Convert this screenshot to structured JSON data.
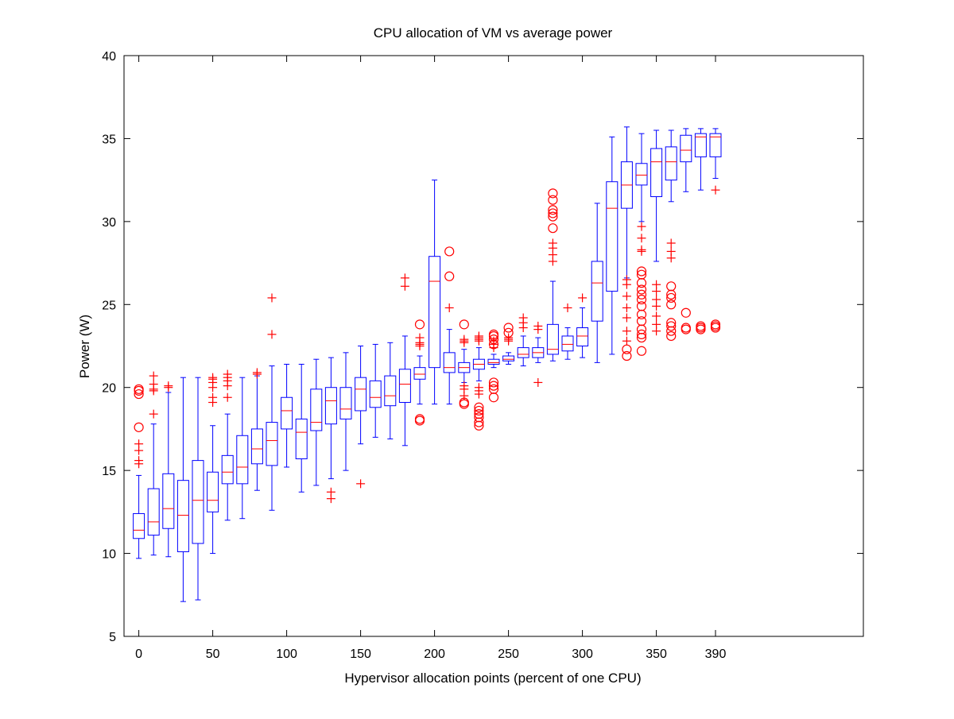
{
  "chart_data": {
    "type": "box",
    "title": "CPU allocation of VM vs average power",
    "xlabel": "Hypervisor allocation points (percent of one CPU)",
    "ylabel": "Power (W)",
    "xlim": [
      -10,
      490
    ],
    "ylim": [
      5,
      40
    ],
    "xticks": [
      0,
      50,
      100,
      150,
      200,
      250,
      300,
      350,
      390
    ],
    "yticks": [
      5,
      10,
      15,
      20,
      25,
      30,
      35,
      40
    ],
    "grid": false,
    "colors": {
      "box": "#0000ff",
      "median": "#ff0000",
      "outlier": "#ff0000",
      "axes": "#000000"
    },
    "boxes": [
      {
        "x": 0,
        "whisker_low": 9.7,
        "q1": 10.9,
        "median": 11.4,
        "q3": 12.4,
        "whisker_high": 14.7,
        "outliers_plus": [
          15.4,
          15.6,
          16.2,
          16.6
        ],
        "outliers_circle": [
          17.6,
          19.6,
          19.8,
          19.9
        ]
      },
      {
        "x": 10,
        "whisker_low": 9.9,
        "q1": 11.1,
        "median": 11.9,
        "q3": 13.9,
        "whisker_high": 17.8,
        "outliers_plus": [
          18.4,
          19.8,
          19.9,
          20.2,
          20.7
        ],
        "outliers_circle": []
      },
      {
        "x": 20,
        "whisker_low": 9.8,
        "q1": 11.5,
        "median": 12.7,
        "q3": 14.8,
        "whisker_high": 19.7,
        "outliers_plus": [
          20.0,
          20.1
        ],
        "outliers_circle": []
      },
      {
        "x": 30,
        "whisker_low": 7.1,
        "q1": 10.1,
        "median": 12.3,
        "q3": 14.4,
        "whisker_high": 20.6,
        "outliers_plus": [],
        "outliers_circle": []
      },
      {
        "x": 40,
        "whisker_low": 7.2,
        "q1": 10.6,
        "median": 13.2,
        "q3": 15.6,
        "whisker_high": 20.6,
        "outliers_plus": [],
        "outliers_circle": []
      },
      {
        "x": 50,
        "whisker_low": 10.0,
        "q1": 12.5,
        "median": 13.2,
        "q3": 14.9,
        "whisker_high": 17.7,
        "outliers_plus": [
          19.1,
          19.4,
          20.0,
          20.3,
          20.5,
          20.6
        ],
        "outliers_circle": []
      },
      {
        "x": 60,
        "whisker_low": 12.0,
        "q1": 14.2,
        "median": 14.9,
        "q3": 15.9,
        "whisker_high": 18.4,
        "outliers_plus": [
          19.4,
          20.1,
          20.4,
          20.6,
          20.8
        ],
        "outliers_circle": []
      },
      {
        "x": 70,
        "whisker_low": 12.1,
        "q1": 14.2,
        "median": 15.2,
        "q3": 17.1,
        "whisker_high": 20.6,
        "outliers_plus": [],
        "outliers_circle": []
      },
      {
        "x": 80,
        "whisker_low": 13.8,
        "q1": 15.4,
        "median": 16.3,
        "q3": 17.5,
        "whisker_high": 20.7,
        "outliers_plus": [
          20.8,
          20.9
        ],
        "outliers_circle": []
      },
      {
        "x": 90,
        "whisker_low": 12.6,
        "q1": 15.3,
        "median": 16.8,
        "q3": 17.9,
        "whisker_high": 21.3,
        "outliers_plus": [
          23.2,
          25.4
        ],
        "outliers_circle": []
      },
      {
        "x": 100,
        "whisker_low": 15.2,
        "q1": 17.5,
        "median": 18.6,
        "q3": 19.4,
        "whisker_high": 21.4,
        "outliers_plus": [],
        "outliers_circle": []
      },
      {
        "x": 110,
        "whisker_low": 13.7,
        "q1": 15.7,
        "median": 17.3,
        "q3": 18.1,
        "whisker_high": 21.4,
        "outliers_plus": [],
        "outliers_circle": []
      },
      {
        "x": 120,
        "whisker_low": 14.1,
        "q1": 17.4,
        "median": 17.9,
        "q3": 19.9,
        "whisker_high": 21.7,
        "outliers_plus": [],
        "outliers_circle": []
      },
      {
        "x": 130,
        "whisker_low": 14.5,
        "q1": 17.8,
        "median": 19.2,
        "q3": 20.0,
        "whisker_high": 21.8,
        "outliers_plus": [
          13.3,
          13.7
        ],
        "outliers_circle": []
      },
      {
        "x": 140,
        "whisker_low": 15.0,
        "q1": 18.1,
        "median": 18.7,
        "q3": 20.0,
        "whisker_high": 22.1,
        "outliers_plus": [],
        "outliers_circle": []
      },
      {
        "x": 150,
        "whisker_low": 16.6,
        "q1": 18.6,
        "median": 19.9,
        "q3": 20.6,
        "whisker_high": 22.5,
        "outliers_plus": [
          14.2
        ],
        "outliers_circle": []
      },
      {
        "x": 160,
        "whisker_low": 17.0,
        "q1": 18.8,
        "median": 19.4,
        "q3": 20.4,
        "whisker_high": 22.6,
        "outliers_plus": [],
        "outliers_circle": []
      },
      {
        "x": 170,
        "whisker_low": 16.9,
        "q1": 18.9,
        "median": 19.5,
        "q3": 20.7,
        "whisker_high": 22.7,
        "outliers_plus": [],
        "outliers_circle": []
      },
      {
        "x": 180,
        "whisker_low": 16.5,
        "q1": 19.1,
        "median": 20.2,
        "q3": 21.1,
        "whisker_high": 23.1,
        "outliers_plus": [
          26.1,
          26.6
        ],
        "outliers_circle": []
      },
      {
        "x": 190,
        "whisker_low": 19.0,
        "q1": 20.5,
        "median": 20.8,
        "q3": 21.2,
        "whisker_high": 21.9,
        "outliers_plus": [
          22.5,
          22.6,
          22.7,
          23.0
        ],
        "outliers_circle": [
          18.0,
          18.1,
          23.8
        ]
      },
      {
        "x": 200,
        "whisker_low": 19.0,
        "q1": 21.2,
        "median": 26.4,
        "q3": 27.9,
        "whisker_high": 32.5,
        "outliers_plus": [],
        "outliers_circle": []
      },
      {
        "x": 210,
        "whisker_low": 19.0,
        "q1": 20.9,
        "median": 21.2,
        "q3": 22.1,
        "whisker_high": 23.5,
        "outliers_plus": [
          24.8
        ],
        "outliers_circle": [
          26.7,
          28.2
        ]
      },
      {
        "x": 220,
        "whisker_low": 20.3,
        "q1": 20.9,
        "median": 21.2,
        "q3": 21.5,
        "whisker_high": 22.3,
        "outliers_plus": [
          19.5,
          19.9,
          20.1,
          22.7,
          22.8,
          22.9
        ],
        "outliers_circle": [
          19.0,
          19.1,
          23.8
        ]
      },
      {
        "x": 230,
        "whisker_low": 20.4,
        "q1": 21.1,
        "median": 21.4,
        "q3": 21.7,
        "whisker_high": 22.4,
        "outliers_plus": [
          19.6,
          19.8,
          20.0,
          22.8,
          22.9,
          23.0,
          23.1
        ],
        "outliers_circle": [
          17.7,
          17.9,
          18.2,
          18.4,
          18.6,
          18.8
        ]
      },
      {
        "x": 240,
        "whisker_low": 21.2,
        "q1": 21.4,
        "median": 21.5,
        "q3": 21.7,
        "whisker_high": 22.0,
        "outliers_plus": [
          22.4,
          22.6,
          22.8
        ],
        "outliers_circle": [
          19.4,
          19.9,
          20.1,
          20.3,
          22.6,
          22.9,
          23.1,
          23.2
        ]
      },
      {
        "x": 250,
        "whisker_low": 21.4,
        "q1": 21.6,
        "median": 21.7,
        "q3": 21.9,
        "whisker_high": 22.1,
        "outliers_plus": [
          22.8,
          22.9,
          23.0
        ],
        "outliers_circle": [
          23.3,
          23.6
        ]
      },
      {
        "x": 260,
        "whisker_low": 21.3,
        "q1": 21.8,
        "median": 22.0,
        "q3": 22.4,
        "whisker_high": 23.1,
        "outliers_plus": [
          23.6,
          23.9,
          24.2
        ],
        "outliers_circle": []
      },
      {
        "x": 270,
        "whisker_low": 21.5,
        "q1": 21.8,
        "median": 22.1,
        "q3": 22.4,
        "whisker_high": 23.0,
        "outliers_plus": [
          20.3,
          23.5,
          23.7
        ],
        "outliers_circle": []
      },
      {
        "x": 280,
        "whisker_low": 21.6,
        "q1": 22.0,
        "median": 22.3,
        "q3": 23.8,
        "whisker_high": 26.4,
        "outliers_plus": [
          27.6,
          28.0,
          28.4,
          28.7
        ],
        "outliers_circle": [
          29.6,
          30.3,
          30.5,
          30.7,
          31.3,
          31.7
        ]
      },
      {
        "x": 290,
        "whisker_low": 21.7,
        "q1": 22.2,
        "median": 22.6,
        "q3": 23.1,
        "whisker_high": 23.6,
        "outliers_plus": [
          24.8
        ],
        "outliers_circle": []
      },
      {
        "x": 300,
        "whisker_low": 21.8,
        "q1": 22.5,
        "median": 23.1,
        "q3": 23.6,
        "whisker_high": 24.8,
        "outliers_plus": [
          25.4
        ],
        "outliers_circle": []
      },
      {
        "x": 310,
        "whisker_low": 21.5,
        "q1": 24.0,
        "median": 26.3,
        "q3": 27.6,
        "whisker_high": 31.1,
        "outliers_plus": [],
        "outliers_circle": []
      },
      {
        "x": 320,
        "whisker_low": 22.0,
        "q1": 25.8,
        "median": 30.8,
        "q3": 32.4,
        "whisker_high": 35.1,
        "outliers_plus": [],
        "outliers_circle": []
      },
      {
        "x": 330,
        "whisker_low": 26.6,
        "q1": 30.8,
        "median": 32.2,
        "q3": 33.6,
        "whisker_high": 35.7,
        "outliers_plus": [
          22.8,
          23.4,
          24.2,
          24.8,
          25.5,
          26.2,
          26.5
        ],
        "outliers_circle": [
          21.9,
          22.3
        ]
      },
      {
        "x": 340,
        "whisker_low": 30.0,
        "q1": 32.2,
        "median": 32.8,
        "q3": 33.5,
        "whisker_high": 35.3,
        "outliers_plus": [
          28.2,
          28.3,
          29.0,
          29.7
        ],
        "outliers_circle": [
          22.2,
          23.0,
          23.2,
          23.5,
          24.0,
          24.4,
          24.9,
          25.3,
          25.6,
          25.9,
          26.3,
          26.8,
          27.0
        ]
      },
      {
        "x": 350,
        "whisker_low": 27.6,
        "q1": 31.5,
        "median": 33.6,
        "q3": 34.4,
        "whisker_high": 35.5,
        "outliers_plus": [
          23.4,
          23.8,
          24.3,
          24.9,
          25.3,
          25.8,
          26.2
        ],
        "outliers_circle": []
      },
      {
        "x": 360,
        "whisker_low": 31.2,
        "q1": 32.5,
        "median": 33.6,
        "q3": 34.5,
        "whisker_high": 35.5,
        "outliers_plus": [
          27.8,
          28.2,
          28.7
        ],
        "outliers_circle": [
          23.1,
          23.4,
          23.7,
          23.9,
          25.0,
          25.4,
          25.6,
          26.1
        ]
      },
      {
        "x": 370,
        "whisker_low": 31.8,
        "q1": 33.6,
        "median": 34.3,
        "q3": 35.2,
        "whisker_high": 35.6,
        "outliers_plus": [],
        "outliers_circle": [
          23.5,
          23.6,
          24.5
        ]
      },
      {
        "x": 380,
        "whisker_low": 31.9,
        "q1": 33.9,
        "median": 35.1,
        "q3": 35.3,
        "whisker_high": 35.6,
        "outliers_plus": [],
        "outliers_circle": [
          23.5,
          23.6,
          23.7
        ]
      },
      {
        "x": 390,
        "whisker_low": 32.6,
        "q1": 33.9,
        "median": 35.1,
        "q3": 35.3,
        "whisker_high": 35.6,
        "outliers_plus": [
          31.9
        ],
        "outliers_circle": [
          23.6,
          23.7,
          23.8
        ]
      }
    ]
  }
}
